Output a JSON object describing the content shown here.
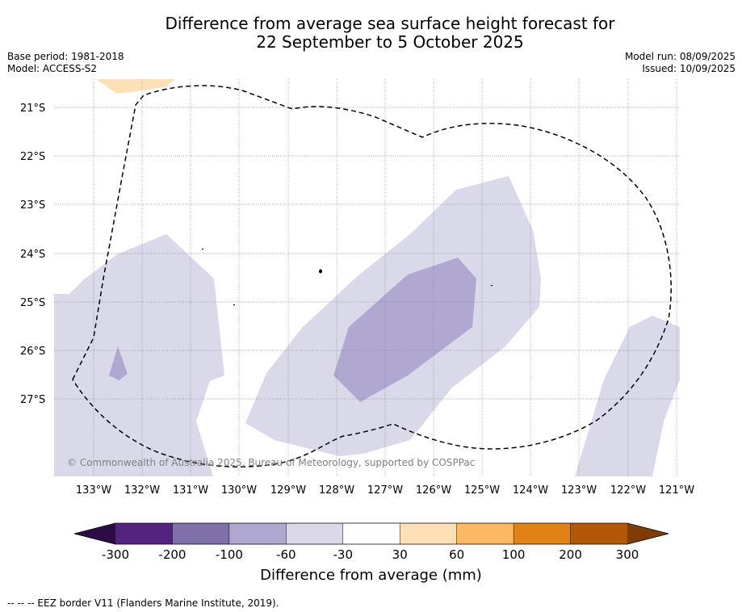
{
  "title_line1": "Difference from average sea surface height forecast for",
  "title_line2": "22 September to 5 October 2025",
  "base_period": "Base period: 1981-2018",
  "model": "Model: ACCESS-S2",
  "model_run": "Model run: 08/09/2025",
  "issued": "Issued: 10/09/2025",
  "copyright": "© Commonwealth of Australia 2025, Bureau of Meteorology, supported by COSPPac",
  "lon_labels": [
    "133°W",
    "132°W",
    "131°W",
    "130°W",
    "129°W",
    "128°W",
    "127°W",
    "126°W",
    "125°W",
    "124°W",
    "123°W",
    "122°W",
    "121°W"
  ],
  "lat_labels": [
    "21°S",
    "22°S",
    "23°S",
    "24°S",
    "25°S",
    "26°S",
    "27°S"
  ],
  "colorbar": {
    "title": "Difference from average (mm)",
    "tick_labels": [
      "-300",
      "-200",
      "-100",
      "-60",
      "-30",
      "30",
      "60",
      "100",
      "200",
      "300"
    ],
    "colors": [
      "#2d0b45",
      "#53237f",
      "#7f6fab",
      "#b0a8d0",
      "#d9d9ea",
      "#ffffff",
      "#fee0b6",
      "#fdb863",
      "#e08214",
      "#b35806",
      "#7f3b08"
    ]
  },
  "footer": "--  --  -- EEZ border V11 (Flanders Marine Institute, 2019)."
}
